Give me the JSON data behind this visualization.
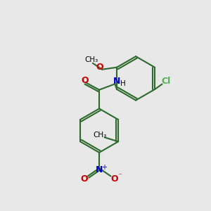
{
  "background_color": "#e8e8e8",
  "bond_color": "#2d6b2d",
  "atom_colors": {
    "O": "#cc0000",
    "N": "#0000cc",
    "Cl": "#4db34d",
    "C": "#000000",
    "H": "#000000"
  },
  "figsize": [
    3.0,
    3.0
  ],
  "dpi": 100
}
